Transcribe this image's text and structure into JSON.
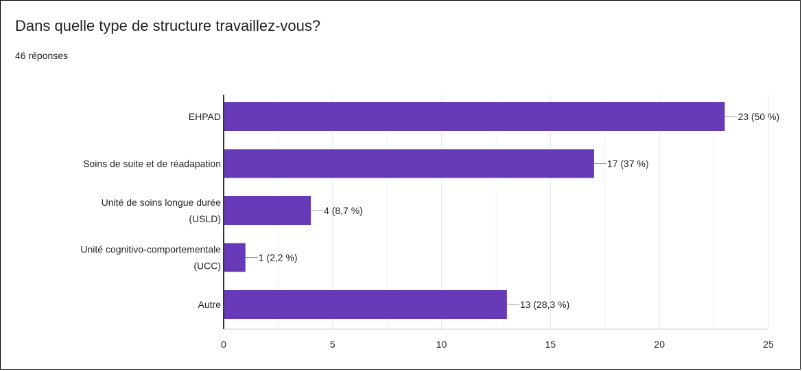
{
  "header": {
    "title": "Dans quelle type de structure travaillez-vous?",
    "response_count": "46 réponses"
  },
  "chart_data": {
    "type": "bar",
    "orientation": "horizontal",
    "categories": [
      [
        "EHPAD"
      ],
      [
        "Soins de suite et de réadapation"
      ],
      [
        "Unité de soins longue durée",
        "(USLD)"
      ],
      [
        "Unité cognitivo-comportementale",
        "(UCC)"
      ],
      [
        "Autre"
      ]
    ],
    "values": [
      23,
      17,
      4,
      1,
      13
    ],
    "data_labels": [
      "23 (50 %)",
      "17 (37 %)",
      "4 (8,7 %)",
      "1 (2,2 %)",
      "13 (28,3 %)"
    ],
    "xlim": [
      0,
      25
    ],
    "xticks": [
      0,
      5,
      10,
      15,
      20,
      25
    ],
    "grid": true,
    "colors": {
      "bar": "#673ab7",
      "grid": "#e6e6e6",
      "axis": "#333333",
      "leader": "#999999"
    }
  }
}
